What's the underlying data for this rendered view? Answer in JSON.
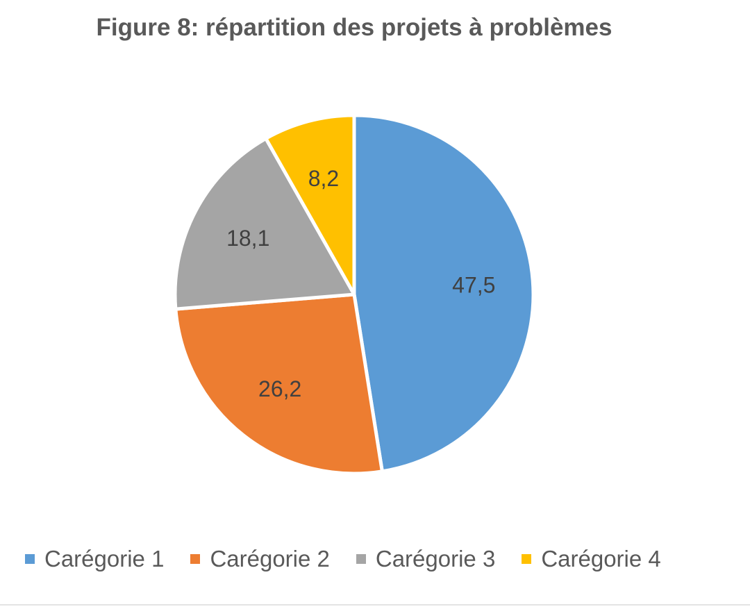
{
  "chart_data": {
    "type": "pie",
    "title": "Figure 8: répartition des projets à problèmes",
    "categories": [
      "Carégorie 1",
      "Carégorie 2",
      "Carégorie 3",
      "Carégorie 4"
    ],
    "values": [
      47.5,
      26.2,
      18.1,
      8.2
    ],
    "data_labels": [
      "47,5",
      "26,2",
      "18,1",
      "8,2"
    ],
    "colors": [
      "#5B9BD5",
      "#ED7D31",
      "#A5A5A5",
      "#FFC000"
    ],
    "legend_position": "bottom",
    "start_angle": "12 o'clock, clockwise"
  }
}
